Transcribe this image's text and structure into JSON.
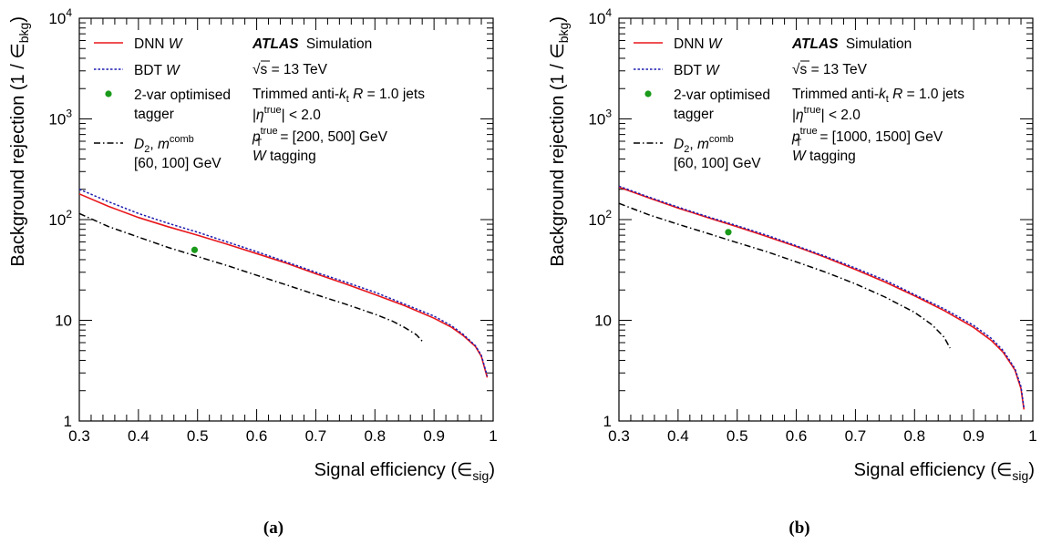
{
  "chart_data": [
    {
      "type": "line",
      "panel_label": "(a)",
      "xlabel_text": "Signal efficiency (",
      "xlabel_symbol": "∈",
      "xlabel_sub": "sig",
      "xlabel_close": ")",
      "ylabel_text": "Background rejection (1 / ",
      "ylabel_symbol": "∈",
      "ylabel_sub": "bkg",
      "ylabel_close": ")",
      "xlim": [
        0.3,
        1.0
      ],
      "ylim": [
        1,
        10000
      ],
      "yscale": "log",
      "grid": false,
      "legend_position": "top-left",
      "x_ticks": [
        "0.3",
        "0.4",
        "0.5",
        "0.6",
        "0.7",
        "0.8",
        "0.9",
        "1"
      ],
      "y_ticks": [
        {
          "value": 1,
          "base": "1",
          "exp": ""
        },
        {
          "value": 10,
          "base": "10",
          "exp": ""
        },
        {
          "value": 100,
          "base": "10",
          "exp": "2"
        },
        {
          "value": 1000,
          "base": "10",
          "exp": "3"
        },
        {
          "value": 10000,
          "base": "10",
          "exp": "4"
        }
      ],
      "series": [
        {
          "name": "DNN W",
          "style": "solid",
          "color": "#e8161b",
          "x": [
            0.3,
            0.35,
            0.4,
            0.45,
            0.5,
            0.55,
            0.6,
            0.65,
            0.7,
            0.75,
            0.8,
            0.85,
            0.9,
            0.93,
            0.95,
            0.97,
            0.98,
            0.99
          ],
          "y": [
            180,
            135,
            105,
            85,
            70,
            57,
            46,
            37,
            29,
            23,
            18,
            14,
            10.5,
            8.5,
            7.0,
            5.5,
            4.4,
            2.7
          ]
        },
        {
          "name": "BDT W",
          "style": "dotted",
          "color": "#1c1cb0",
          "x": [
            0.3,
            0.35,
            0.4,
            0.45,
            0.5,
            0.55,
            0.6,
            0.65,
            0.7,
            0.75,
            0.8,
            0.85,
            0.9,
            0.93,
            0.95,
            0.97,
            0.98,
            0.99
          ],
          "y": [
            200,
            150,
            115,
            92,
            75,
            60,
            48,
            38,
            30,
            24,
            19,
            14.5,
            11,
            8.8,
            7.2,
            5.6,
            4.5,
            2.8
          ]
        },
        {
          "name": "D2, mcomb [60, 100] GeV",
          "style": "dashdot",
          "color": "#000000",
          "x": [
            0.3,
            0.35,
            0.4,
            0.45,
            0.5,
            0.55,
            0.6,
            0.65,
            0.7,
            0.75,
            0.8,
            0.83,
            0.85,
            0.87,
            0.88
          ],
          "y": [
            115,
            85,
            67,
            53,
            43,
            35,
            28,
            22.5,
            18,
            14.5,
            11.5,
            9.8,
            8.5,
            7.2,
            6.2
          ]
        }
      ],
      "points": [
        {
          "name": "2-var optimised tagger",
          "x": 0.495,
          "y": 50,
          "color": "#1a9a1a"
        }
      ],
      "legend": {
        "dnn": {
          "text": "DNN ",
          "italic": "W"
        },
        "bdt": {
          "text": "BDT ",
          "italic": "W"
        },
        "twovar": {
          "line1": "2-var optimised",
          "line2": "tagger"
        },
        "d2": {
          "d": "D",
          "sub": "2",
          "comma": ", ",
          "m": "m",
          "sup": "comb",
          "line2": "[60, 100] GeV"
        }
      },
      "info": {
        "atlas": "ATLAS",
        "simulation": "Simulation",
        "sqrt_s": "s = 13 TeV",
        "sqrt_sym": "√",
        "jets_pre": "Trimmed anti-",
        "jets_k": "k",
        "jets_ksub": "t",
        "jets_r": " R",
        "jets_post": " = 1.0 jets",
        "eta_pre": "|",
        "eta_sym": "η",
        "eta_sup": "true",
        "eta_post": "| < 2.0",
        "pt_p": "p",
        "pt_sub": "T",
        "pt_sup": "true",
        "pt_range": "= [200, 500] GeV",
        "tagging_w": "W",
        "tagging": " tagging"
      }
    },
    {
      "type": "line",
      "panel_label": "(b)",
      "xlabel_text": "Signal efficiency (",
      "xlabel_symbol": "∈",
      "xlabel_sub": "sig",
      "xlabel_close": ")",
      "ylabel_text": "Background rejection (1 / ",
      "ylabel_symbol": "∈",
      "ylabel_sub": "bkg",
      "ylabel_close": ")",
      "xlim": [
        0.3,
        1.0
      ],
      "ylim": [
        1,
        10000
      ],
      "yscale": "log",
      "grid": false,
      "legend_position": "top-left",
      "x_ticks": [
        "0.3",
        "0.4",
        "0.5",
        "0.6",
        "0.7",
        "0.8",
        "0.9",
        "1"
      ],
      "y_ticks": [
        {
          "value": 1,
          "base": "1",
          "exp": ""
        },
        {
          "value": 10,
          "base": "10",
          "exp": ""
        },
        {
          "value": 100,
          "base": "10",
          "exp": "2"
        },
        {
          "value": 1000,
          "base": "10",
          "exp": "3"
        },
        {
          "value": 10000,
          "base": "10",
          "exp": "4"
        }
      ],
      "series": [
        {
          "name": "DNN W",
          "style": "solid",
          "color": "#e8161b",
          "x": [
            0.3,
            0.35,
            0.4,
            0.45,
            0.5,
            0.55,
            0.6,
            0.65,
            0.7,
            0.75,
            0.8,
            0.85,
            0.9,
            0.93,
            0.95,
            0.97,
            0.98,
            0.985
          ],
          "y": [
            210,
            165,
            130,
            105,
            85,
            68,
            54,
            42,
            32,
            24,
            17.5,
            12.5,
            8.5,
            6.3,
            4.8,
            3.2,
            2.1,
            1.3
          ]
        },
        {
          "name": "BDT W",
          "style": "dotted",
          "color": "#1c1cb0",
          "x": [
            0.3,
            0.35,
            0.4,
            0.45,
            0.5,
            0.55,
            0.6,
            0.65,
            0.7,
            0.75,
            0.8,
            0.85,
            0.9,
            0.93,
            0.95,
            0.97,
            0.98,
            0.985
          ],
          "y": [
            215,
            168,
            133,
            107,
            87,
            70,
            55,
            43,
            33,
            25,
            18,
            13,
            8.9,
            6.6,
            5.0,
            3.3,
            2.2,
            1.35
          ]
        },
        {
          "name": "D2, mcomb [60, 100] GeV",
          "style": "dashdot",
          "color": "#000000",
          "x": [
            0.3,
            0.35,
            0.4,
            0.45,
            0.5,
            0.55,
            0.6,
            0.65,
            0.7,
            0.75,
            0.8,
            0.83,
            0.85,
            0.86
          ],
          "y": [
            145,
            112,
            90,
            73,
            59,
            48,
            38,
            30,
            23,
            17,
            12,
            9,
            6.8,
            5.3
          ]
        }
      ],
      "points": [
        {
          "name": "2-var optimised tagger",
          "x": 0.485,
          "y": 75,
          "color": "#1a9a1a"
        }
      ],
      "legend": {
        "dnn": {
          "text": "DNN ",
          "italic": "W"
        },
        "bdt": {
          "text": "BDT ",
          "italic": "W"
        },
        "twovar": {
          "line1": "2-var optimised",
          "line2": "tagger"
        },
        "d2": {
          "d": "D",
          "sub": "2",
          "comma": ", ",
          "m": "m",
          "sup": "comb",
          "line2": "[60, 100] GeV"
        }
      },
      "info": {
        "atlas": "ATLAS",
        "simulation": "Simulation",
        "sqrt_s": "s = 13 TeV",
        "sqrt_sym": "√",
        "jets_pre": "Trimmed anti-",
        "jets_k": "k",
        "jets_ksub": "t",
        "jets_r": " R",
        "jets_post": " = 1.0 jets",
        "eta_pre": "|",
        "eta_sym": "η",
        "eta_sup": "true",
        "eta_post": "| < 2.0",
        "pt_p": "p",
        "pt_sub": "T",
        "pt_sup": "true",
        "pt_range": "= [1000, 1500] GeV",
        "tagging_w": "W",
        "tagging": " tagging"
      }
    }
  ]
}
